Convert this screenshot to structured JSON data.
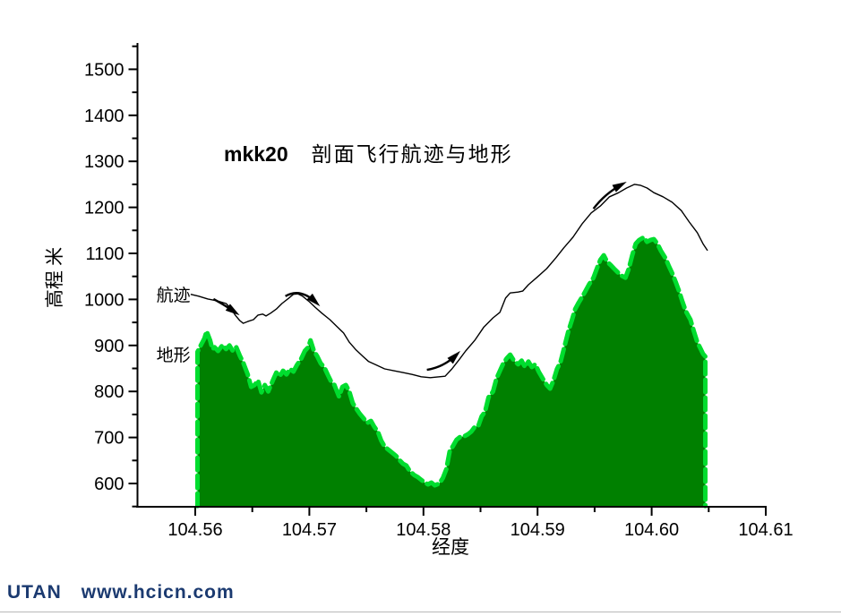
{
  "title": {
    "prefix": "mkk20",
    "text": "剖面飞行航迹与地形"
  },
  "footer": {
    "brand": "UTAN",
    "url": "www.hcicn.com",
    "color": "#1b3a70"
  },
  "colors": {
    "terrain_fill": "#008000",
    "terrain_edge": "#00dd2e",
    "track_line": "#000000"
  },
  "chart_data": {
    "type": "area",
    "title": "mkk20 剖面飞行航迹与地形",
    "xlabel": "经度",
    "ylabel": "高程 米",
    "xlim": [
      104.5549,
      104.61
    ],
    "ylim": [
      550,
      1557
    ],
    "grid": false,
    "x_ticks": {
      "major": [
        {
          "v": 104.56,
          "label": "104.56"
        },
        {
          "v": 104.57,
          "label": "104.57"
        },
        {
          "v": 104.58,
          "label": "104.58"
        },
        {
          "v": 104.59,
          "label": "104.59"
        },
        {
          "v": 104.6,
          "label": "104.60"
        },
        {
          "v": 104.61,
          "label": "104.61"
        }
      ],
      "minor": [
        104.565,
        104.575,
        104.585,
        104.595,
        104.605
      ]
    },
    "y_ticks": {
      "major": [
        600,
        700,
        800,
        900,
        1000,
        1100,
        1200,
        1300,
        1400,
        1500
      ],
      "minor": [
        550,
        650,
        750,
        850,
        950,
        1050,
        1150,
        1250,
        1350,
        1450,
        1550
      ]
    },
    "series": [
      {
        "name": "地形",
        "type": "area",
        "fill": "#008000",
        "stroke": "#00dd2e",
        "baseline": 551,
        "points": [
          [
            104.5602,
            886
          ],
          [
            104.5605,
            901
          ],
          [
            104.5608,
            915
          ],
          [
            104.561,
            931
          ],
          [
            104.5613,
            911
          ],
          [
            104.5615,
            892
          ],
          [
            104.5617,
            896
          ],
          [
            104.562,
            888
          ],
          [
            104.5624,
            901
          ],
          [
            104.5627,
            892
          ],
          [
            104.563,
            900
          ],
          [
            104.5633,
            888
          ],
          [
            104.5636,
            896
          ],
          [
            104.5639,
            878
          ],
          [
            104.5642,
            863
          ],
          [
            104.5646,
            837
          ],
          [
            104.5649,
            810
          ],
          [
            104.5652,
            814
          ],
          [
            104.5655,
            824
          ],
          [
            104.5658,
            798
          ],
          [
            104.5661,
            814
          ],
          [
            104.5664,
            800
          ],
          [
            104.5668,
            824
          ],
          [
            104.5671,
            841
          ],
          [
            104.5674,
            833
          ],
          [
            104.5677,
            845
          ],
          [
            104.568,
            837
          ],
          [
            104.5683,
            849
          ],
          [
            104.5686,
            843
          ],
          [
            104.5689,
            857
          ],
          [
            104.5693,
            872
          ],
          [
            104.5696,
            888
          ],
          [
            104.5699,
            896
          ],
          [
            104.5701,
            911
          ],
          [
            104.5704,
            888
          ],
          [
            104.5707,
            876
          ],
          [
            104.571,
            861
          ],
          [
            104.5713,
            853
          ],
          [
            104.5716,
            837
          ],
          [
            104.5719,
            822
          ],
          [
            104.5722,
            814
          ],
          [
            104.5726,
            789
          ],
          [
            104.5729,
            810
          ],
          [
            104.5732,
            814
          ],
          [
            104.5735,
            800
          ],
          [
            104.5738,
            775
          ],
          [
            104.5741,
            763
          ],
          [
            104.5744,
            752
          ],
          [
            104.5748,
            740
          ],
          [
            104.5751,
            732
          ],
          [
            104.5754,
            736
          ],
          [
            104.5757,
            723
          ],
          [
            104.576,
            713
          ],
          [
            104.5763,
            693
          ],
          [
            104.5766,
            680
          ],
          [
            104.577,
            672
          ],
          [
            104.5773,
            666
          ],
          [
            104.5776,
            660
          ],
          [
            104.5779,
            651
          ],
          [
            104.5782,
            643
          ],
          [
            104.5785,
            639
          ],
          [
            104.5788,
            627
          ],
          [
            104.5792,
            618
          ],
          [
            104.5795,
            614
          ],
          [
            104.5798,
            608
          ],
          [
            104.5801,
            602
          ],
          [
            104.5804,
            598
          ],
          [
            104.5807,
            602
          ],
          [
            104.581,
            596
          ],
          [
            104.5814,
            600
          ],
          [
            104.5817,
            612
          ],
          [
            104.582,
            631
          ],
          [
            104.5823,
            670
          ],
          [
            104.5826,
            682
          ],
          [
            104.5829,
            695
          ],
          [
            104.5832,
            701
          ],
          [
            104.5836,
            703
          ],
          [
            104.5839,
            707
          ],
          [
            104.5842,
            713
          ],
          [
            104.5845,
            723
          ],
          [
            104.5848,
            725
          ],
          [
            104.5851,
            746
          ],
          [
            104.5854,
            756
          ],
          [
            104.5857,
            787
          ],
          [
            104.5861,
            800
          ],
          [
            104.5864,
            828
          ],
          [
            104.5867,
            845
          ],
          [
            104.587,
            861
          ],
          [
            104.5873,
            872
          ],
          [
            104.5876,
            880
          ],
          [
            104.5879,
            868
          ],
          [
            104.5883,
            859
          ],
          [
            104.5886,
            867
          ],
          [
            104.5889,
            853
          ],
          [
            104.5892,
            865
          ],
          [
            104.5895,
            853
          ],
          [
            104.5898,
            859
          ],
          [
            104.5901,
            843
          ],
          [
            104.5905,
            826
          ],
          [
            104.5908,
            814
          ],
          [
            104.5911,
            806
          ],
          [
            104.5914,
            824
          ],
          [
            104.5917,
            849
          ],
          [
            104.592,
            863
          ],
          [
            104.5923,
            892
          ],
          [
            104.5927,
            931
          ],
          [
            104.593,
            954
          ],
          [
            104.5933,
            979
          ],
          [
            104.5936,
            993
          ],
          [
            104.5939,
            1005
          ],
          [
            104.5942,
            1018
          ],
          [
            104.5945,
            1032
          ],
          [
            104.5949,
            1047
          ],
          [
            104.5952,
            1067
          ],
          [
            104.5955,
            1086
          ],
          [
            104.5958,
            1096
          ],
          [
            104.5961,
            1082
          ],
          [
            104.5964,
            1075
          ],
          [
            104.5967,
            1067
          ],
          [
            104.5971,
            1057
          ],
          [
            104.5974,
            1051
          ],
          [
            104.5977,
            1047
          ],
          [
            104.598,
            1067
          ],
          [
            104.5983,
            1096
          ],
          [
            104.5986,
            1121
          ],
          [
            104.5989,
            1129
          ],
          [
            104.5993,
            1135
          ],
          [
            104.5996,
            1125
          ],
          [
            104.5999,
            1129
          ],
          [
            104.6002,
            1131
          ],
          [
            104.6005,
            1121
          ],
          [
            104.6008,
            1106
          ],
          [
            104.6012,
            1090
          ],
          [
            104.6015,
            1073
          ],
          [
            104.6018,
            1057
          ],
          [
            104.6021,
            1038
          ],
          [
            104.6024,
            1018
          ],
          [
            104.6027,
            995
          ],
          [
            104.603,
            974
          ],
          [
            104.6034,
            956
          ],
          [
            104.6037,
            931
          ],
          [
            104.604,
            907
          ],
          [
            104.6043,
            892
          ],
          [
            104.6045,
            882
          ],
          [
            104.6047,
            876
          ]
        ]
      },
      {
        "name": "航迹",
        "type": "line",
        "color": "#000000",
        "points": [
          [
            104.5596,
            1011
          ],
          [
            104.5603,
            1007
          ],
          [
            104.5611,
            1001
          ],
          [
            104.5619,
            997
          ],
          [
            104.5627,
            991
          ],
          [
            104.5631,
            981
          ],
          [
            104.5635,
            966
          ],
          [
            104.5639,
            954
          ],
          [
            104.5642,
            948
          ],
          [
            104.5646,
            952
          ],
          [
            104.5651,
            956
          ],
          [
            104.5655,
            966
          ],
          [
            104.5659,
            968
          ],
          [
            104.5662,
            964
          ],
          [
            104.5666,
            970
          ],
          [
            104.5671,
            979
          ],
          [
            104.5676,
            991
          ],
          [
            104.5682,
            1003
          ],
          [
            104.5686,
            1011
          ],
          [
            104.569,
            1012
          ],
          [
            104.5694,
            1007
          ],
          [
            104.57,
            995
          ],
          [
            104.5705,
            983
          ],
          [
            104.5711,
            970
          ],
          [
            104.5718,
            956
          ],
          [
            104.5723,
            944
          ],
          [
            104.573,
            927
          ],
          [
            104.5735,
            907
          ],
          [
            104.5741,
            890
          ],
          [
            104.5747,
            876
          ],
          [
            104.5752,
            865
          ],
          [
            104.5759,
            857
          ],
          [
            104.5766,
            849
          ],
          [
            104.5774,
            845
          ],
          [
            104.5782,
            841
          ],
          [
            104.579,
            837
          ],
          [
            104.5798,
            832
          ],
          [
            104.5806,
            830
          ],
          [
            104.5814,
            832
          ],
          [
            104.5819,
            833
          ],
          [
            104.5825,
            849
          ],
          [
            104.5831,
            868
          ],
          [
            104.5837,
            888
          ],
          [
            104.5845,
            911
          ],
          [
            104.5853,
            940
          ],
          [
            104.5861,
            960
          ],
          [
            104.5867,
            972
          ],
          [
            104.5872,
            1003
          ],
          [
            104.5876,
            1014
          ],
          [
            104.5883,
            1016
          ],
          [
            104.5887,
            1018
          ],
          [
            104.5892,
            1032
          ],
          [
            104.59,
            1049
          ],
          [
            104.5908,
            1067
          ],
          [
            104.5916,
            1090
          ],
          [
            104.5923,
            1112
          ],
          [
            104.5931,
            1135
          ],
          [
            104.5939,
            1164
          ],
          [
            104.5947,
            1188
          ],
          [
            104.5955,
            1203
          ],
          [
            104.5963,
            1223
          ],
          [
            104.5971,
            1232
          ],
          [
            104.5978,
            1242
          ],
          [
            104.5985,
            1250
          ],
          [
            104.599,
            1248
          ],
          [
            104.5996,
            1242
          ],
          [
            104.6002,
            1232
          ],
          [
            104.601,
            1223
          ],
          [
            104.6018,
            1211
          ],
          [
            104.6026,
            1193
          ],
          [
            104.6033,
            1168
          ],
          [
            104.604,
            1145
          ],
          [
            104.6045,
            1121
          ],
          [
            104.6049,
            1106
          ]
        ]
      }
    ],
    "labels": [
      {
        "text": "航迹",
        "x": 104.5566,
        "y": 997
      },
      {
        "text": "地形",
        "x": 104.5566,
        "y": 867
      }
    ],
    "arrows": [
      {
        "tail": [
          104.5616,
          1001
        ],
        "ctrl": [
          104.5625,
          989
        ],
        "head": [
          104.5635,
          972
        ]
      },
      {
        "tail": [
          104.5679,
          1007
        ],
        "ctrl": [
          104.5692,
          1026
        ],
        "head": [
          104.5706,
          993
        ]
      },
      {
        "tail": [
          104.5803,
          847
        ],
        "ctrl": [
          104.5818,
          853
        ],
        "head": [
          104.5829,
          880
        ]
      },
      {
        "tail": [
          104.5949,
          1197
        ],
        "ctrl": [
          104.5959,
          1230
        ],
        "head": [
          104.5974,
          1250
        ]
      }
    ],
    "legend_position": "inline-labels"
  }
}
